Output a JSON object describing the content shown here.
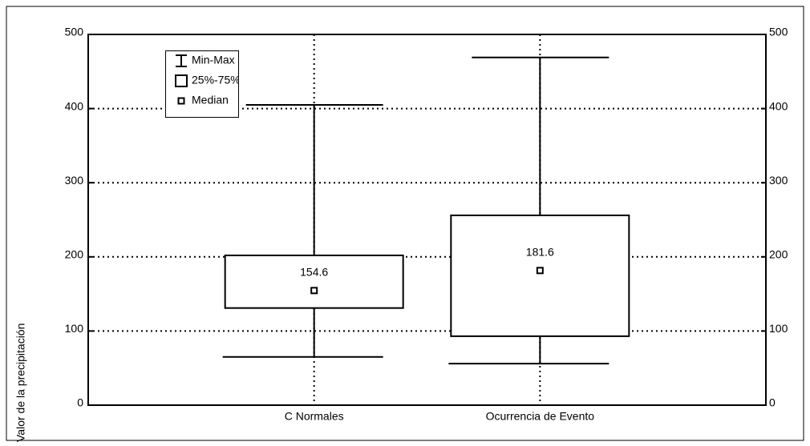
{
  "chart_data": {
    "type": "box",
    "y_label": "Valor de la precipitación",
    "categories": [
      "C Normales",
      "Ocurrencia de Evento"
    ],
    "min": [
      65,
      56
    ],
    "q1": [
      131,
      93
    ],
    "median": [
      154.6,
      181.6
    ],
    "q3": [
      202,
      256
    ],
    "max": [
      405,
      469
    ],
    "ylim": [
      0,
      500
    ],
    "yticks": [
      0,
      100,
      200,
      300,
      400,
      500
    ],
    "y2lim": [
      0,
      500
    ],
    "y2ticks": [
      0,
      100,
      200,
      300,
      400,
      500
    ],
    "grid": true,
    "legend": [
      "Min-Max",
      "25%-75%",
      "Median"
    ],
    "legend_position": "upper left",
    "color": "#000000"
  }
}
